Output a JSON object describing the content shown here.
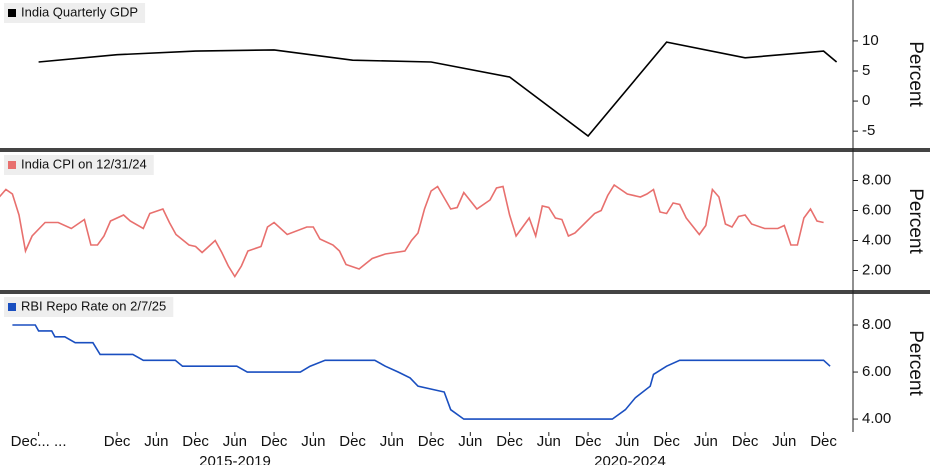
{
  "chart_data": [
    {
      "type": "line",
      "y_label": "Percent",
      "legend": "upper left",
      "xlim": [
        -17.9,
        112.5
      ],
      "ylim": [
        -7.8,
        16.8
      ],
      "yticks": [
        -5,
        0,
        5,
        10
      ],
      "series": [
        {
          "name": "India Quarterly GDP",
          "color": "#000000",
          "x": [
            -12,
            0,
            12,
            24,
            36,
            48,
            60,
            72,
            84,
            96,
            108,
            110
          ],
          "values": [
            6.5,
            7.7,
            8.3,
            8.5,
            6.8,
            6.5,
            4.0,
            -5.8,
            9.8,
            7.2,
            8.3,
            6.5
          ]
        }
      ]
    },
    {
      "type": "line",
      "y_label": "Percent",
      "legend": "upper left",
      "xlim": [
        -17.9,
        112.5
      ],
      "ylim": [
        0.7,
        9.9
      ],
      "yticks": [
        {
          "value": 2,
          "label": "2.00"
        },
        {
          "value": 4,
          "label": "4.00"
        },
        {
          "value": 6,
          "label": "6.00"
        },
        {
          "value": 8,
          "label": "8.00"
        }
      ],
      "series": [
        {
          "name": "India CPI on 12/31/24",
          "color": "#e8706e",
          "x": [
            -18,
            -17,
            -16,
            -15,
            -14,
            -13,
            -11,
            -9,
            -7,
            -5,
            -4,
            -3,
            -2,
            -1,
            1,
            2,
            4,
            5,
            7,
            8,
            9,
            11,
            12,
            13,
            15,
            16,
            17,
            18,
            19,
            20,
            22,
            23,
            24,
            26,
            29,
            30,
            31,
            33,
            34,
            35,
            37,
            39,
            41,
            44,
            45,
            46,
            47,
            48,
            49,
            51,
            52,
            53,
            55,
            57,
            58,
            59,
            60,
            61,
            63,
            64,
            65,
            66,
            67,
            68,
            69,
            70,
            73,
            74,
            75,
            76,
            78,
            80,
            81,
            82,
            83,
            84,
            85,
            86,
            87,
            89,
            90,
            91,
            92,
            93,
            94,
            95,
            96,
            97,
            99,
            101,
            102,
            103,
            104,
            105,
            106,
            107,
            108
          ],
          "values": [
            6.9,
            7.4,
            7.1,
            5.7,
            3.3,
            4.3,
            5.2,
            5.2,
            4.8,
            5.4,
            3.7,
            3.7,
            4.3,
            5.3,
            5.7,
            5.3,
            4.8,
            5.8,
            6.1,
            5.2,
            4.4,
            3.7,
            3.6,
            3.2,
            4.0,
            3.2,
            2.3,
            1.6,
            2.3,
            3.3,
            3.6,
            4.9,
            5.2,
            4.4,
            4.9,
            4.9,
            4.1,
            3.7,
            3.3,
            2.4,
            2.1,
            2.8,
            3.1,
            3.3,
            4.0,
            4.5,
            6.1,
            7.3,
            7.6,
            6.1,
            6.2,
            7.2,
            6.1,
            6.7,
            7.5,
            7.6,
            5.7,
            4.3,
            5.5,
            4.3,
            6.3,
            6.2,
            5.5,
            5.4,
            4.3,
            4.5,
            5.8,
            6.0,
            7.0,
            7.7,
            7.1,
            6.9,
            7.1,
            7.4,
            5.9,
            5.8,
            6.5,
            6.4,
            5.5,
            4.4,
            5.0,
            7.4,
            6.9,
            5.1,
            4.9,
            5.6,
            5.7,
            5.1,
            4.8,
            4.8,
            5.0,
            3.7,
            3.7,
            5.5,
            6.1,
            5.3,
            5.2
          ]
        }
      ]
    },
    {
      "type": "line",
      "y_label": "Percent",
      "legend": "upper left",
      "xlim": [
        -17.9,
        112.5
      ],
      "ylim": [
        3.45,
        9.32
      ],
      "yticks": [
        {
          "value": 4,
          "label": "4.00"
        },
        {
          "value": 6,
          "label": "6.00"
        },
        {
          "value": 8,
          "label": "8.00"
        }
      ],
      "xticks": [
        {
          "value": -12,
          "label": "Dec... ..."
        },
        {
          "value": 0,
          "label": "Dec"
        },
        {
          "value": 6,
          "label": "Jun"
        },
        {
          "value": 12,
          "label": "Dec"
        },
        {
          "value": 18,
          "label": "Jun"
        },
        {
          "value": 24,
          "label": "Dec"
        },
        {
          "value": 30,
          "label": "Jun"
        },
        {
          "value": 36,
          "label": "Dec"
        },
        {
          "value": 42,
          "label": "Jun"
        },
        {
          "value": 48,
          "label": "Dec"
        },
        {
          "value": 54,
          "label": "Jun"
        },
        {
          "value": 60,
          "label": "Dec"
        },
        {
          "value": 66,
          "label": "Jun"
        },
        {
          "value": 72,
          "label": "Dec"
        },
        {
          "value": 78,
          "label": "Jun"
        },
        {
          "value": 84,
          "label": "Dec"
        },
        {
          "value": 90,
          "label": "Jun"
        },
        {
          "value": 96,
          "label": "Dec"
        },
        {
          "value": 102,
          "label": "Jun"
        },
        {
          "value": 108,
          "label": "Dec"
        }
      ],
      "x_group_labels": [
        "2015-2019",
        "2020-2024"
      ],
      "series": [
        {
          "name": "RBI Repo Rate on 2/7/25",
          "color": "#1a4fc0",
          "x": [
            -16,
            -12.5,
            -12,
            -10,
            -9.5,
            -8,
            -6.4,
            -3.7,
            -2.6,
            2.4,
            4,
            8.9,
            10,
            18.3,
            19.9,
            28,
            29.5,
            31.8,
            39.4,
            41,
            43,
            44.8,
            46,
            50,
            51,
            53,
            75.7,
            77.7,
            79.2,
            81.5,
            82,
            84,
            86,
            108,
            109
          ],
          "values": [
            8.0,
            8.0,
            7.75,
            7.75,
            7.5,
            7.5,
            7.25,
            7.25,
            6.75,
            6.75,
            6.5,
            6.5,
            6.25,
            6.25,
            6.0,
            6.0,
            6.25,
            6.5,
            6.5,
            6.25,
            6.0,
            5.75,
            5.4,
            5.15,
            4.4,
            4.0,
            4.0,
            4.4,
            4.9,
            5.4,
            5.9,
            6.25,
            6.5,
            6.5,
            6.25
          ]
        }
      ]
    }
  ]
}
